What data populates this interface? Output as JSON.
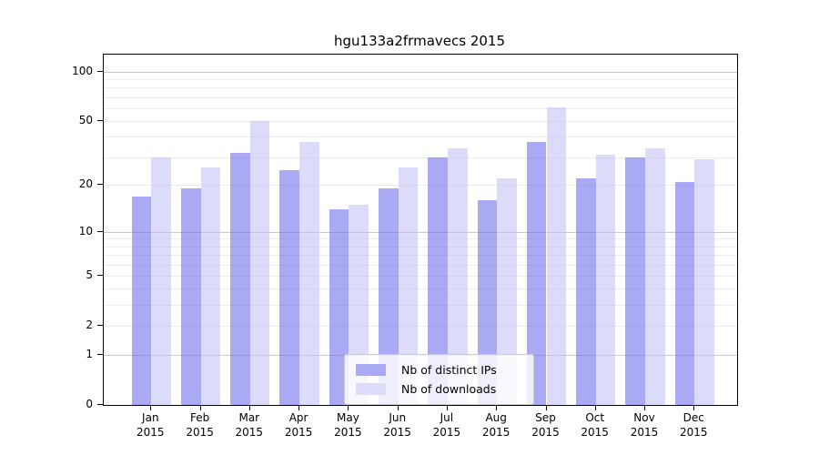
{
  "title": "hgu133a2frmavecs 2015",
  "chart_data": {
    "type": "bar",
    "title": "hgu133a2frmavecs 2015",
    "xlabel": "",
    "ylabel": "",
    "scale": "log10(1+y)",
    "ylim": [
      0,
      127
    ],
    "grid": true,
    "legend_position": "inside lower-center-right",
    "year": "2015",
    "categories": [
      "Jan",
      "Feb",
      "Mar",
      "Apr",
      "May",
      "Jun",
      "Jul",
      "Aug",
      "Sep",
      "Oct",
      "Nov",
      "Dec"
    ],
    "series": [
      {
        "name": "Nb of distinct IPs",
        "color": "rgba(99,99,235,0.55)",
        "color_solid": "#a9a9f4",
        "values": [
          17,
          19,
          32,
          25,
          14,
          19,
          30,
          16,
          37,
          22,
          30,
          21
        ]
      },
      {
        "name": "Nb of downloads",
        "color": "rgba(191,191,246,0.55)",
        "color_solid": "#dcdcfa",
        "values": [
          30,
          26,
          50,
          37,
          15,
          26,
          34,
          22,
          61,
          31,
          34,
          29
        ]
      }
    ],
    "yticks": [
      0,
      1,
      2,
      5,
      10,
      20,
      50,
      100
    ],
    "grid_major": [
      1,
      10,
      100
    ],
    "grid_minor": [
      2,
      3,
      4,
      5,
      6,
      7,
      8,
      9,
      20,
      30,
      40,
      50,
      60,
      70,
      80,
      90
    ]
  },
  "colors": {
    "background": "#ffffff",
    "axis": "#000000",
    "text": "#000000",
    "grid_major": "#c9c9c9",
    "grid_minor": "#ebebeb",
    "legend_border": "#cccccc",
    "legend_bg": "rgba(255,255,255,0.8)"
  }
}
